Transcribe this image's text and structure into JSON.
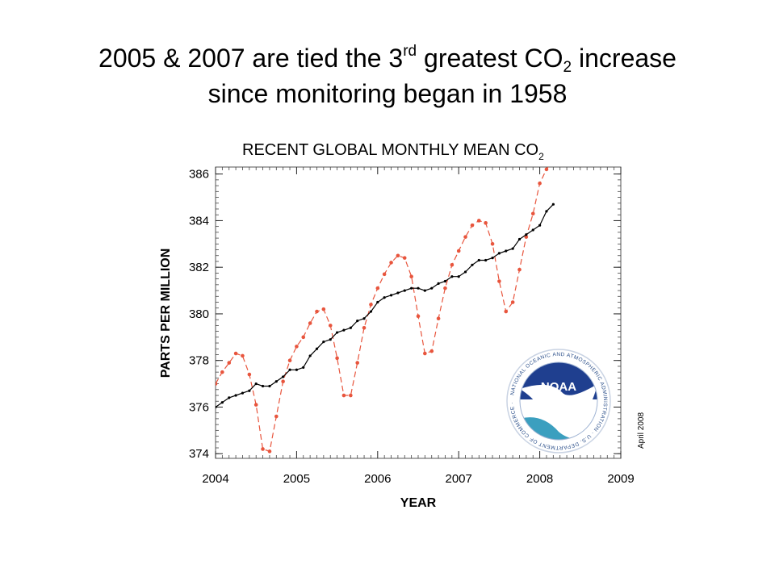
{
  "slide": {
    "title_line1_pre": "2005 & 2007 are tied the 3",
    "title_sup": "rd",
    "title_mid": " greatest CO",
    "title_sub": "2",
    "title_post": " increase",
    "title_line2": "since monitoring began in 1958"
  },
  "logo": {
    "text": "NOAA",
    "ring_text": "NATIONAL OCEANIC AND ATMOSPHERIC ADMINISTRATION · U.S. DEPARTMENT OF COMMERCE ·",
    "colors": {
      "navy": "#1f3f8f",
      "sky": "#7fb2e0",
      "sea": "#3b9fbf"
    }
  },
  "chart_data": {
    "type": "line",
    "title": "RECENT GLOBAL MONTHLY MEAN CO",
    "title_subscript": "2",
    "xlabel": "YEAR",
    "ylabel": "PARTS PER MILLION",
    "annotation": "April 2008",
    "xlim": [
      2004,
      2009
    ],
    "ylim": [
      373.8,
      386.3
    ],
    "x_ticks": [
      2004,
      2005,
      2006,
      2007,
      2008,
      2009
    ],
    "y_ticks": [
      374,
      376,
      378,
      380,
      382,
      384,
      386
    ],
    "grid": false,
    "legend": "none",
    "colors": {
      "monthly": "#e8553d",
      "trend": "#000000"
    },
    "series": [
      {
        "style": "dashed-with-points",
        "x": [
          2004.0,
          2004.083,
          2004.167,
          2004.25,
          2004.333,
          2004.417,
          2004.5,
          2004.583,
          2004.667,
          2004.75,
          2004.833,
          2004.917,
          2005.0,
          2005.083,
          2005.167,
          2005.25,
          2005.333,
          2005.417,
          2005.5,
          2005.583,
          2005.667,
          2005.75,
          2005.833,
          2005.917,
          2006.0,
          2006.083,
          2006.167,
          2006.25,
          2006.333,
          2006.417,
          2006.5,
          2006.583,
          2006.667,
          2006.75,
          2006.833,
          2006.917,
          2007.0,
          2007.083,
          2007.167,
          2007.25,
          2007.333,
          2007.417,
          2007.5,
          2007.583,
          2007.667,
          2007.75,
          2007.833,
          2007.917,
          2008.0,
          2008.083,
          2008.167
        ],
        "y": [
          377.0,
          377.5,
          377.9,
          378.3,
          378.2,
          377.4,
          376.1,
          374.2,
          374.1,
          375.6,
          377.1,
          378.0,
          378.6,
          379.0,
          379.6,
          380.1,
          380.2,
          379.5,
          378.1,
          376.5,
          376.5,
          377.9,
          379.4,
          380.4,
          381.1,
          381.7,
          382.2,
          382.5,
          382.4,
          381.6,
          379.9,
          378.3,
          378.4,
          379.8,
          381.1,
          382.1,
          382.7,
          383.3,
          383.8,
          384.0,
          383.9,
          383.0,
          381.4,
          380.1,
          380.5,
          381.9,
          383.3,
          384.3,
          385.6,
          386.2,
          386.6
        ]
      },
      {
        "style": "solid-with-points",
        "x": [
          2004.0,
          2004.083,
          2004.167,
          2004.25,
          2004.333,
          2004.417,
          2004.5,
          2004.583,
          2004.667,
          2004.75,
          2004.833,
          2004.917,
          2005.0,
          2005.083,
          2005.167,
          2005.25,
          2005.333,
          2005.417,
          2005.5,
          2005.583,
          2005.667,
          2005.75,
          2005.833,
          2005.917,
          2006.0,
          2006.083,
          2006.167,
          2006.25,
          2006.333,
          2006.417,
          2006.5,
          2006.583,
          2006.667,
          2006.75,
          2006.833,
          2006.917,
          2007.0,
          2007.083,
          2007.167,
          2007.25,
          2007.333,
          2007.417,
          2007.5,
          2007.583,
          2007.667,
          2007.75,
          2007.833,
          2007.917,
          2008.0,
          2008.083,
          2008.167
        ],
        "y": [
          376.0,
          376.2,
          376.4,
          376.5,
          376.6,
          376.7,
          377.0,
          376.9,
          376.9,
          377.1,
          377.3,
          377.6,
          377.6,
          377.7,
          378.2,
          378.5,
          378.8,
          378.9,
          379.2,
          379.3,
          379.4,
          379.7,
          379.8,
          380.1,
          380.5,
          380.7,
          380.8,
          380.9,
          381.0,
          381.1,
          381.1,
          381.0,
          381.1,
          381.3,
          381.4,
          381.6,
          381.6,
          381.8,
          382.1,
          382.3,
          382.3,
          382.4,
          382.6,
          382.7,
          382.8,
          383.2,
          383.4,
          383.6,
          383.8,
          384.4,
          384.7
        ]
      }
    ]
  }
}
